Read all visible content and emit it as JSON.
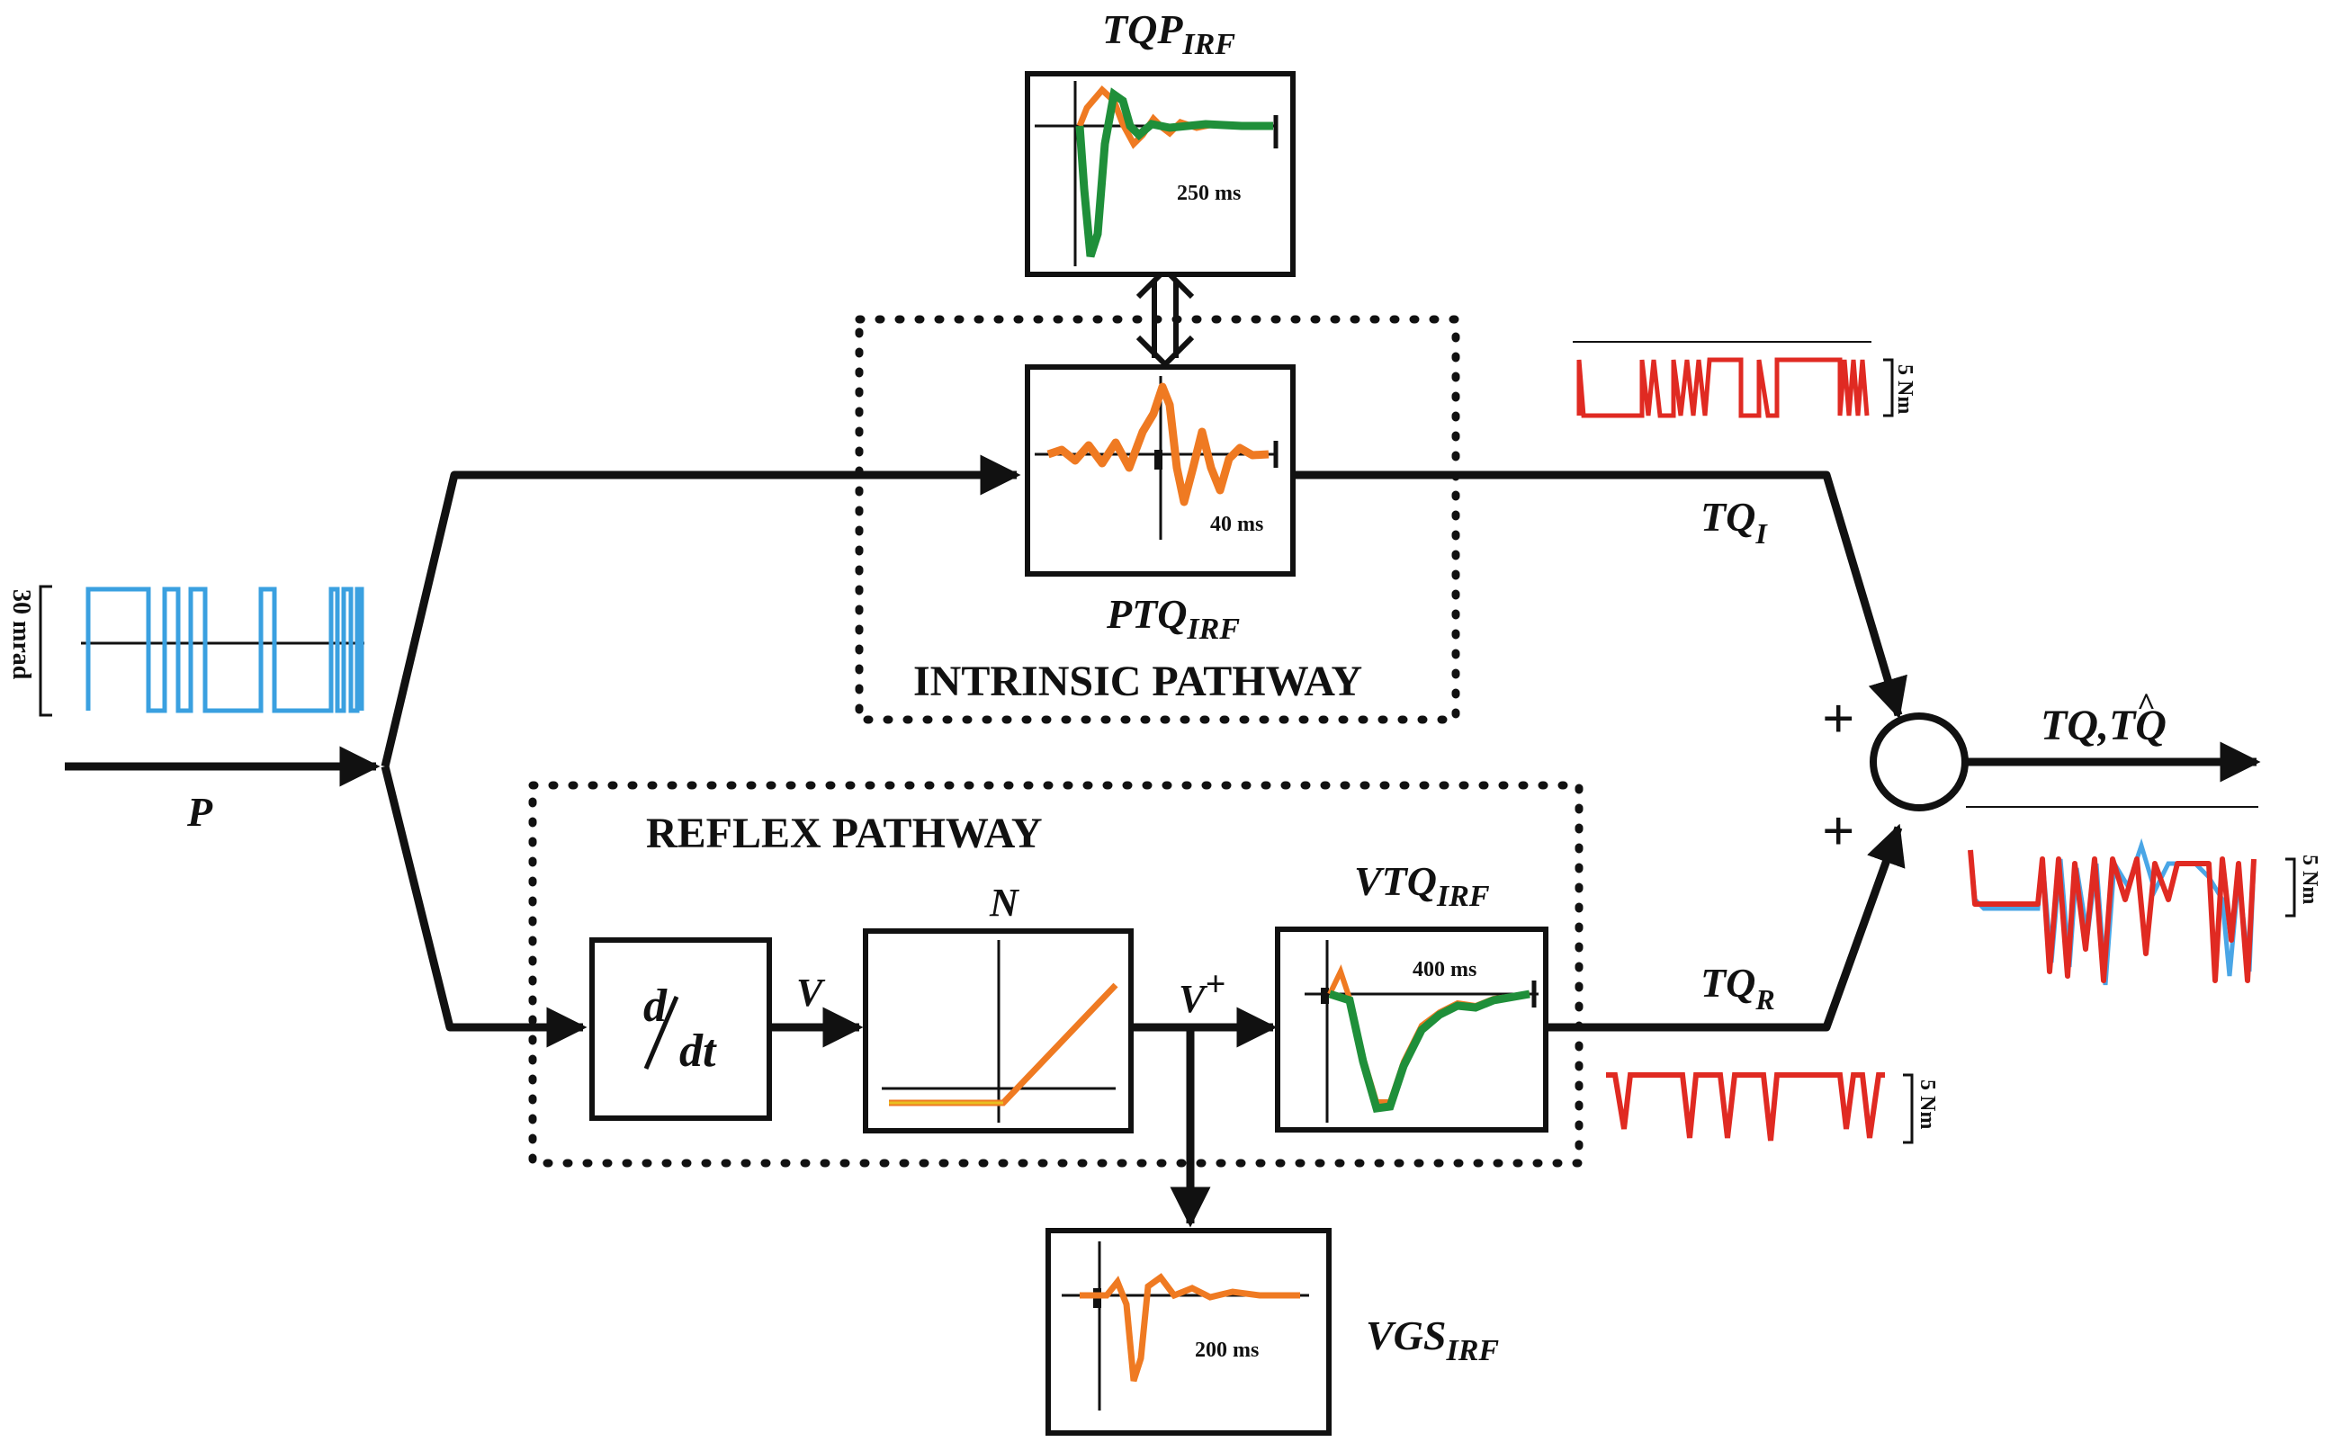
{
  "colors": {
    "line": "#111111",
    "intrinsic_trace": "#ef7a22",
    "model_trace": "#1f8f3a",
    "input_trace": "#3aa0e0",
    "torque_trace": "#e02a22",
    "predicted_trace": "#4aa6e6"
  },
  "labels": {
    "tqp_main": "TQP",
    "tqp_sub": "IRF",
    "ptq_main": "PTQ",
    "ptq_sub": "IRF",
    "vtq_main": "VTQ",
    "vtq_sub": "IRF",
    "vgs_main": "VGS",
    "vgs_sub": "IRF",
    "intrinsic_pathway": "INTRINSIC PATHWAY",
    "reflex_pathway": "REFLEX PATHWAY",
    "input_p": "P",
    "tq_i_main": "TQ",
    "tq_i_sub": "I",
    "tq_r_main": "TQ",
    "tq_r_sub": "R",
    "output": "TQ,TQ",
    "output_hat": "^",
    "plus_top": "+",
    "plus_bottom": "+",
    "v": "V",
    "v_plus_main": "V",
    "v_plus_sup": "+",
    "n": "N",
    "deriv_num": "d",
    "deriv_den": "dt",
    "scale_input": "30 mrad",
    "scale_tq_i": "5 Nm",
    "scale_tq_r": "5 Nm",
    "scale_output": "5 Nm",
    "time_tqp": "250 ms",
    "time_ptq": "40 ms",
    "time_vtq": "400 ms",
    "time_vgs": "200 ms"
  }
}
